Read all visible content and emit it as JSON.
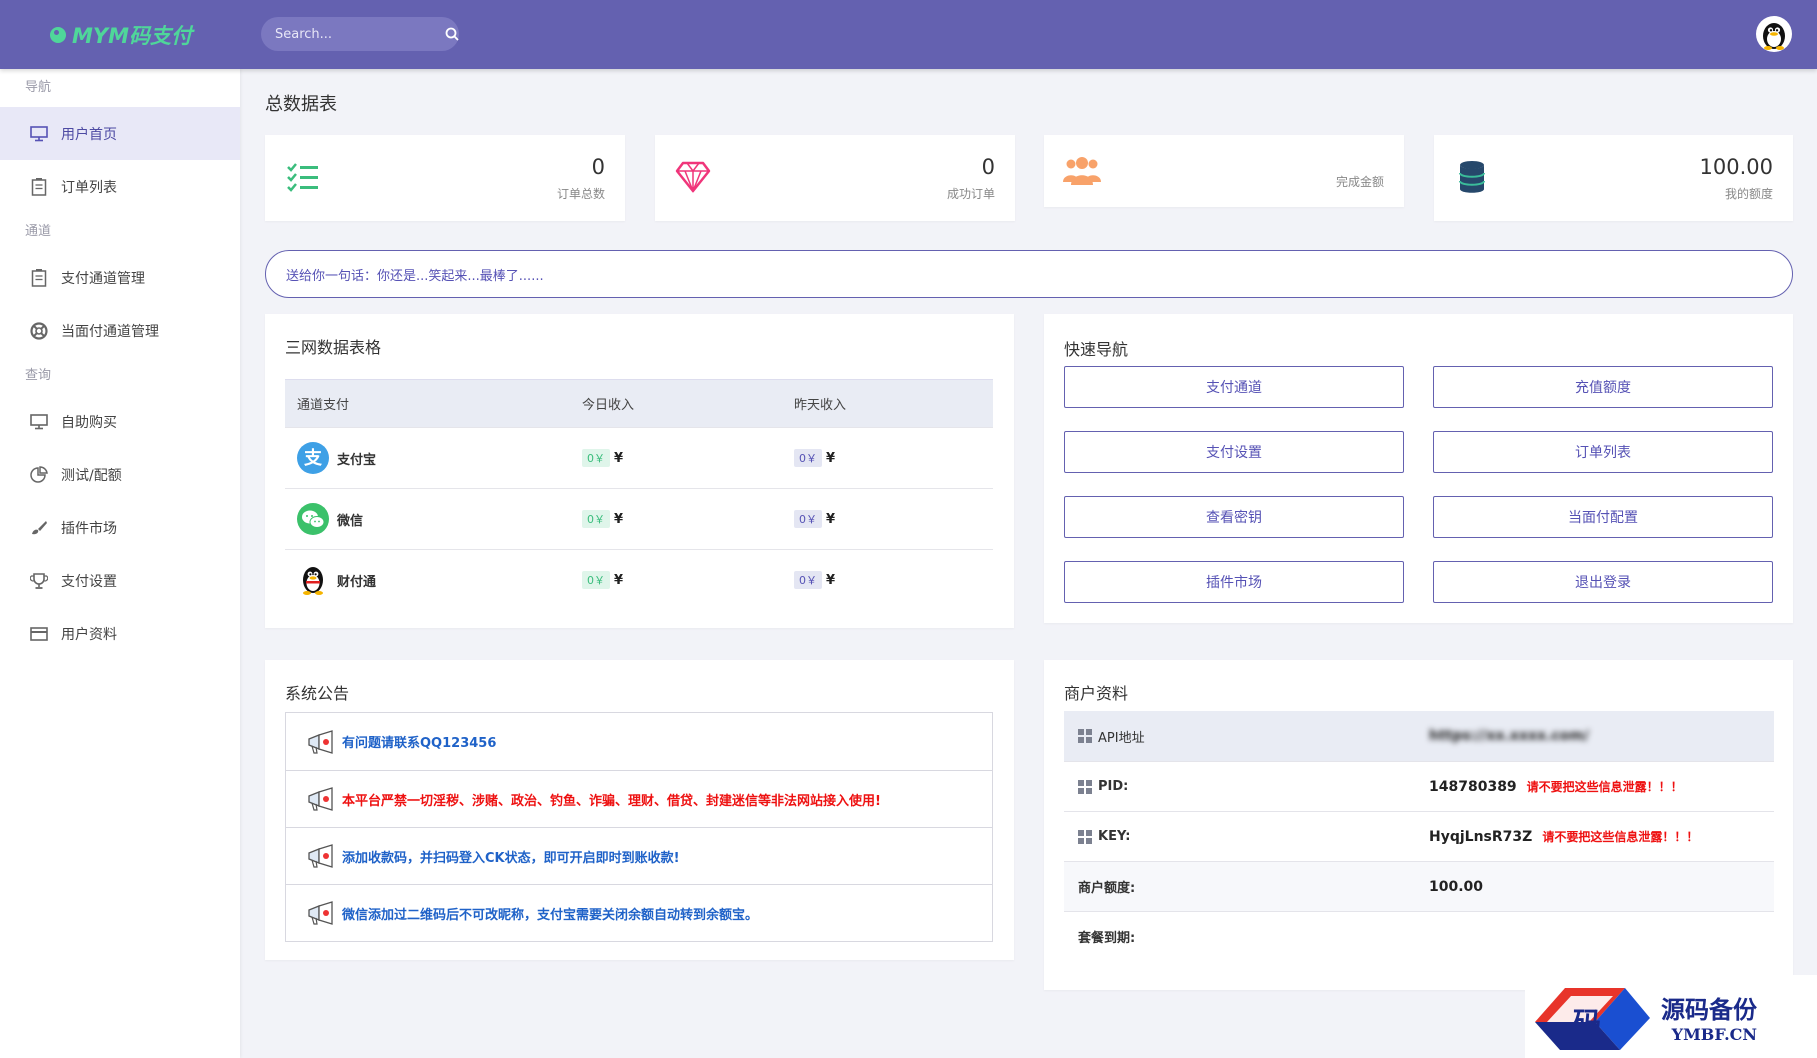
{
  "header": {
    "logo_text": "MYM码支付",
    "search_placeholder": "Search..."
  },
  "sidebar": {
    "sections": [
      {
        "title": "导航",
        "items": [
          {
            "label": "用户首页",
            "icon": "monitor-icon",
            "active": true
          },
          {
            "label": "订单列表",
            "icon": "clipboard-icon"
          }
        ]
      },
      {
        "title": "通道",
        "items": [
          {
            "label": "支付通道管理",
            "icon": "clipboard-icon"
          },
          {
            "label": "当面付通道管理",
            "icon": "lifebuoy-icon"
          }
        ]
      },
      {
        "title": "查询",
        "items": [
          {
            "label": "自助购买",
            "icon": "monitor-icon"
          },
          {
            "label": "测试/配额",
            "icon": "pie-chart-icon"
          },
          {
            "label": "插件市场",
            "icon": "brush-icon"
          },
          {
            "label": "支付设置",
            "icon": "trophy-icon"
          },
          {
            "label": "用户资料",
            "icon": "card-icon"
          }
        ]
      }
    ]
  },
  "page_title": "总数据表",
  "stats": [
    {
      "value": "0",
      "label": "订单总数",
      "icon": "checklist-icon",
      "color": "#3bbd7d"
    },
    {
      "value": "0",
      "label": "成功订单",
      "icon": "diamond-icon",
      "color": "#f0357a"
    },
    {
      "value": "",
      "label": "完成金额",
      "icon": "users-icon",
      "color": "#f8a26a"
    },
    {
      "value": "100.00",
      "label": "我的额度",
      "icon": "database-icon",
      "color": "#26486b"
    }
  ],
  "quote": "送给你一句话：你还是...笑起来...最棒了......",
  "network_table": {
    "title": "三网数据表格",
    "headers": [
      "通道支付",
      "今日收入",
      "昨天收入"
    ],
    "rows": [
      {
        "name": "支付宝",
        "icon": "alipay-icon",
        "today": "0￥",
        "yesterday": "0￥",
        "unit": "¥"
      },
      {
        "name": "微信",
        "icon": "wechat-icon",
        "today": "0￥",
        "yesterday": "0￥",
        "unit": "¥"
      },
      {
        "name": "财付通",
        "icon": "qq-penguin-icon",
        "today": "0￥",
        "yesterday": "0￥",
        "unit": "¥"
      }
    ]
  },
  "quick_nav": {
    "title": "快速导航",
    "buttons": [
      "支付通道",
      "充值额度",
      "支付设置",
      "订单列表",
      "查看密钥",
      "当面付配置",
      "插件市场",
      "退出登录"
    ]
  },
  "notices": {
    "title": "系统公告",
    "items": [
      {
        "text": "有问题请联系QQ123456",
        "color": "#1f62c8"
      },
      {
        "text": "本平台严禁一切淫秽、涉赌、政治、钓鱼、诈骗、理财、借贷、封建迷信等非法网站接入使用!",
        "color": "#e11111"
      },
      {
        "text": "添加收款码，并扫码登入CK状态，即可开启即时到账收款!",
        "color": "#1f62c8"
      },
      {
        "text": "微信添加过二维码后不可改昵称，支付宝需要关闭余额自动转到余额宝。",
        "color": "#1f62c8"
      }
    ]
  },
  "merchant": {
    "title": "商户资料",
    "api_label": "API地址",
    "api_value": "https://xx.xxxx.com/",
    "pid_label": "PID:",
    "pid_value": "148780389",
    "key_label": "KEY:",
    "key_value": "HyqjLnsR73Z",
    "warning": "请不要把这些信息泄露！！！",
    "quota_label": "商户额度:",
    "quota_value": "100.00",
    "expire_label": "套餐到期:",
    "expire_value": ""
  },
  "watermark": {
    "title": "源码备份",
    "url": "YMBF.CN",
    "glyph": "码"
  }
}
